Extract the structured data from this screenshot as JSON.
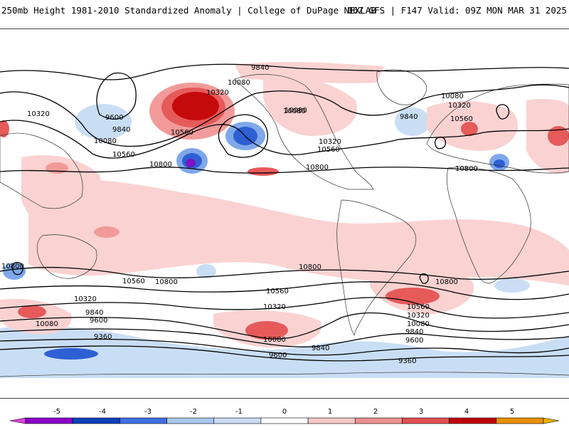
{
  "header": {
    "title": "250mb Height 1981-2010 Standardized Anomaly | College of DuPage NEXLAB",
    "run_info": "06Z GFS | F147 Valid: 09Z MON MAR 31 2025"
  },
  "contour_labels": [
    "9840",
    "10080",
    "10320",
    "10080",
    "10320",
    "9600",
    "9840",
    "10080",
    "10560",
    "10560",
    "10800",
    "10080",
    "10320",
    "10560",
    "10800",
    "9840",
    "10080",
    "10320",
    "10560",
    "10800",
    "10800",
    "10800",
    "10560",
    "10800",
    "10560",
    "10800",
    "10320",
    "9840",
    "9600",
    "9360",
    "10080",
    "10320",
    "10080",
    "9840",
    "9600",
    "10560",
    "10320",
    "10080",
    "9840",
    "9600",
    "9360"
  ],
  "legend": {
    "ticks": [
      "-5",
      "-4",
      "-3",
      "-2",
      "-1",
      "0",
      "1",
      "2",
      "3",
      "4",
      "5"
    ],
    "colors": [
      "#e040e0",
      "#8a00c8",
      "#0a3fb8",
      "#3f6fe0",
      "#a8c8f0",
      "#c8dcf4",
      "#ffffff",
      "#f8c8c8",
      "#f09090",
      "#e05050",
      "#c00000",
      "#e89000",
      "#f0b000"
    ]
  },
  "colors": {
    "pos1": "#fad2d2",
    "pos2": "#f29a9a",
    "pos3": "#e65a5a",
    "pos4": "#c40a0a",
    "neg1": "#c9def5",
    "neg2": "#7fa8ea",
    "neg3": "#2e5fd3",
    "neg4": "#7a14c4"
  }
}
